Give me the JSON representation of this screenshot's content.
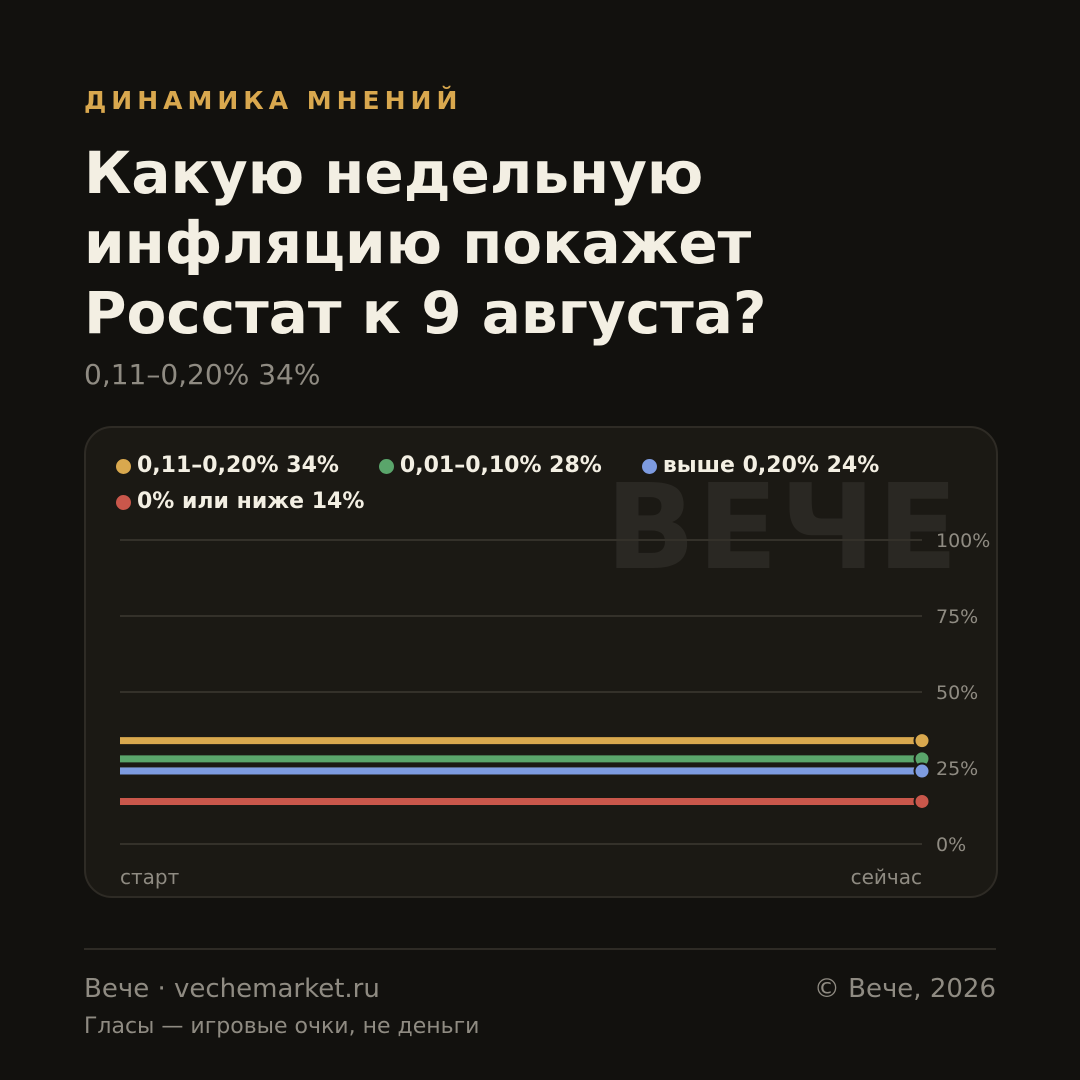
{
  "header": {
    "eyebrow": "ДИНАМИКА МНЕНИЙ",
    "title": "Какую недельную инфляцию покажет Росстат к 9 августа?",
    "subtitle": "0,11–0,20% 34%"
  },
  "watermark": "ВЕЧЕ",
  "chart_data": {
    "type": "line",
    "x": [
      "старт",
      "сейчас"
    ],
    "ylim": [
      0,
      100
    ],
    "y_ticks": [
      "0%",
      "25%",
      "50%",
      "75%",
      "100%"
    ],
    "grid": true,
    "legend_position": "top",
    "series": [
      {
        "name": "0,11–0,20% 34%",
        "color": "#d9a84e",
        "values": [
          34,
          34
        ]
      },
      {
        "name": "0,01–0,10% 28%",
        "color": "#5aa56b",
        "values": [
          28,
          28
        ]
      },
      {
        "name": "выше 0,20% 24%",
        "color": "#7d9be0",
        "values": [
          24,
          24
        ]
      },
      {
        "name": "0% или ниже 14%",
        "color": "#c9574b",
        "values": [
          14,
          14
        ]
      }
    ]
  },
  "footer": {
    "brand": "Вече · vechemarket.ru",
    "copyright": "© Вече, 2026",
    "note": "Гласы — игровые очки, не деньги"
  }
}
